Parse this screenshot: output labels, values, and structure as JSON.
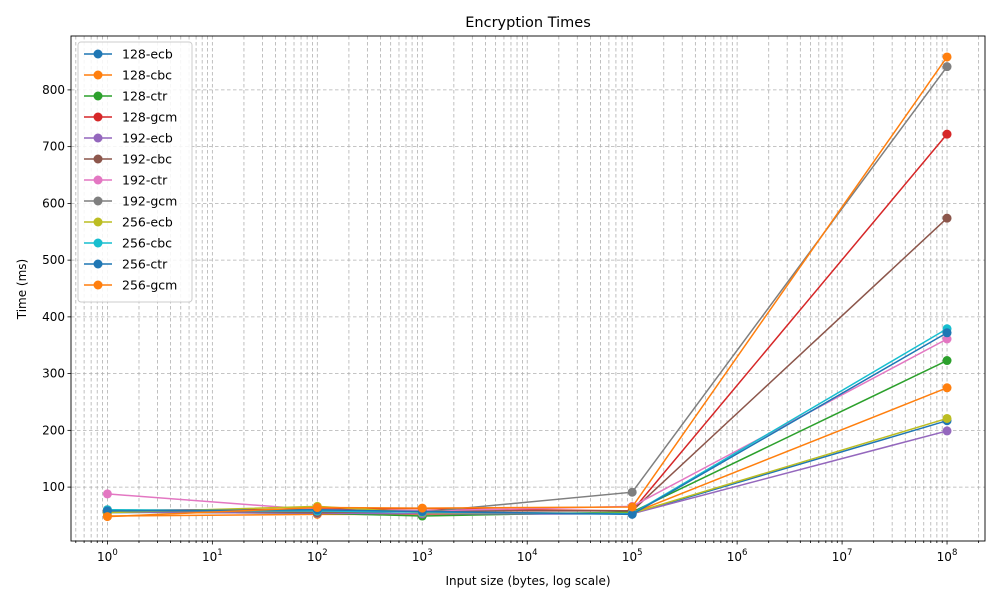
{
  "chart_data": {
    "type": "line",
    "title": "Encryption Times",
    "xlabel": "Input size (bytes, log scale)",
    "ylabel": "Time (ms)",
    "xscale": "log",
    "x": [
      1,
      100,
      1000,
      100000,
      100000000
    ],
    "xlim": [
      0.45,
      230000000
    ],
    "ylim": [
      5,
      895
    ],
    "x_ticks": [
      {
        "value": 1,
        "base": "10",
        "exp": "0"
      },
      {
        "value": 10,
        "base": "10",
        "exp": "1"
      },
      {
        "value": 100,
        "base": "10",
        "exp": "2"
      },
      {
        "value": 1000,
        "base": "10",
        "exp": "3"
      },
      {
        "value": 10000,
        "base": "10",
        "exp": "4"
      },
      {
        "value": 100000,
        "base": "10",
        "exp": "5"
      },
      {
        "value": 1000000,
        "base": "10",
        "exp": "6"
      },
      {
        "value": 10000000,
        "base": "10",
        "exp": "7"
      },
      {
        "value": 100000000,
        "base": "10",
        "exp": "8"
      }
    ],
    "y_ticks": [
      {
        "value": 100,
        "label": "100"
      },
      {
        "value": 200,
        "label": "200"
      },
      {
        "value": 300,
        "label": "300"
      },
      {
        "value": 400,
        "label": "400"
      },
      {
        "value": 500,
        "label": "500"
      },
      {
        "value": 600,
        "label": "600"
      },
      {
        "value": 700,
        "label": "700"
      },
      {
        "value": 800,
        "label": "800"
      }
    ],
    "grid": true,
    "grid_style": "dashed, major and minor",
    "legend_position": "top-left",
    "series": [
      {
        "name": "128-ecb",
        "color": "#1f77b4",
        "values": [
          55,
          57,
          52,
          53,
          217
        ]
      },
      {
        "name": "128-cbc",
        "color": "#ff7f0e",
        "values": [
          49,
          52,
          52,
          54,
          275
        ]
      },
      {
        "name": "128-ctr",
        "color": "#2ca02c",
        "values": [
          56,
          54,
          49,
          56,
          323
        ]
      },
      {
        "name": "128-gcm",
        "color": "#d62728",
        "values": [
          59,
          61,
          62,
          58,
          722
        ]
      },
      {
        "name": "192-ecb",
        "color": "#9467bd",
        "values": [
          56,
          54,
          53,
          53,
          199
        ]
      },
      {
        "name": "192-cbc",
        "color": "#8c564b",
        "values": [
          60,
          55,
          58,
          58,
          574
        ]
      },
      {
        "name": "192-ctr",
        "color": "#e377c2",
        "values": [
          88,
          60,
          58,
          66,
          361
        ]
      },
      {
        "name": "192-gcm",
        "color": "#7f7f7f",
        "values": [
          57,
          57,
          56,
          91,
          841
        ]
      },
      {
        "name": "256-ecb",
        "color": "#bcbd22",
        "values": [
          55,
          66,
          55,
          54,
          221
        ]
      },
      {
        "name": "256-cbc",
        "color": "#17becf",
        "values": [
          60,
          58,
          56,
          53,
          379
        ]
      },
      {
        "name": "256-ctr",
        "color": "#1f77b4",
        "values": [
          58,
          60,
          57,
          52,
          372
        ]
      },
      {
        "name": "256-gcm",
        "color": "#ff7f0e",
        "values": [
          48,
          64,
          63,
          65,
          858
        ]
      }
    ]
  }
}
